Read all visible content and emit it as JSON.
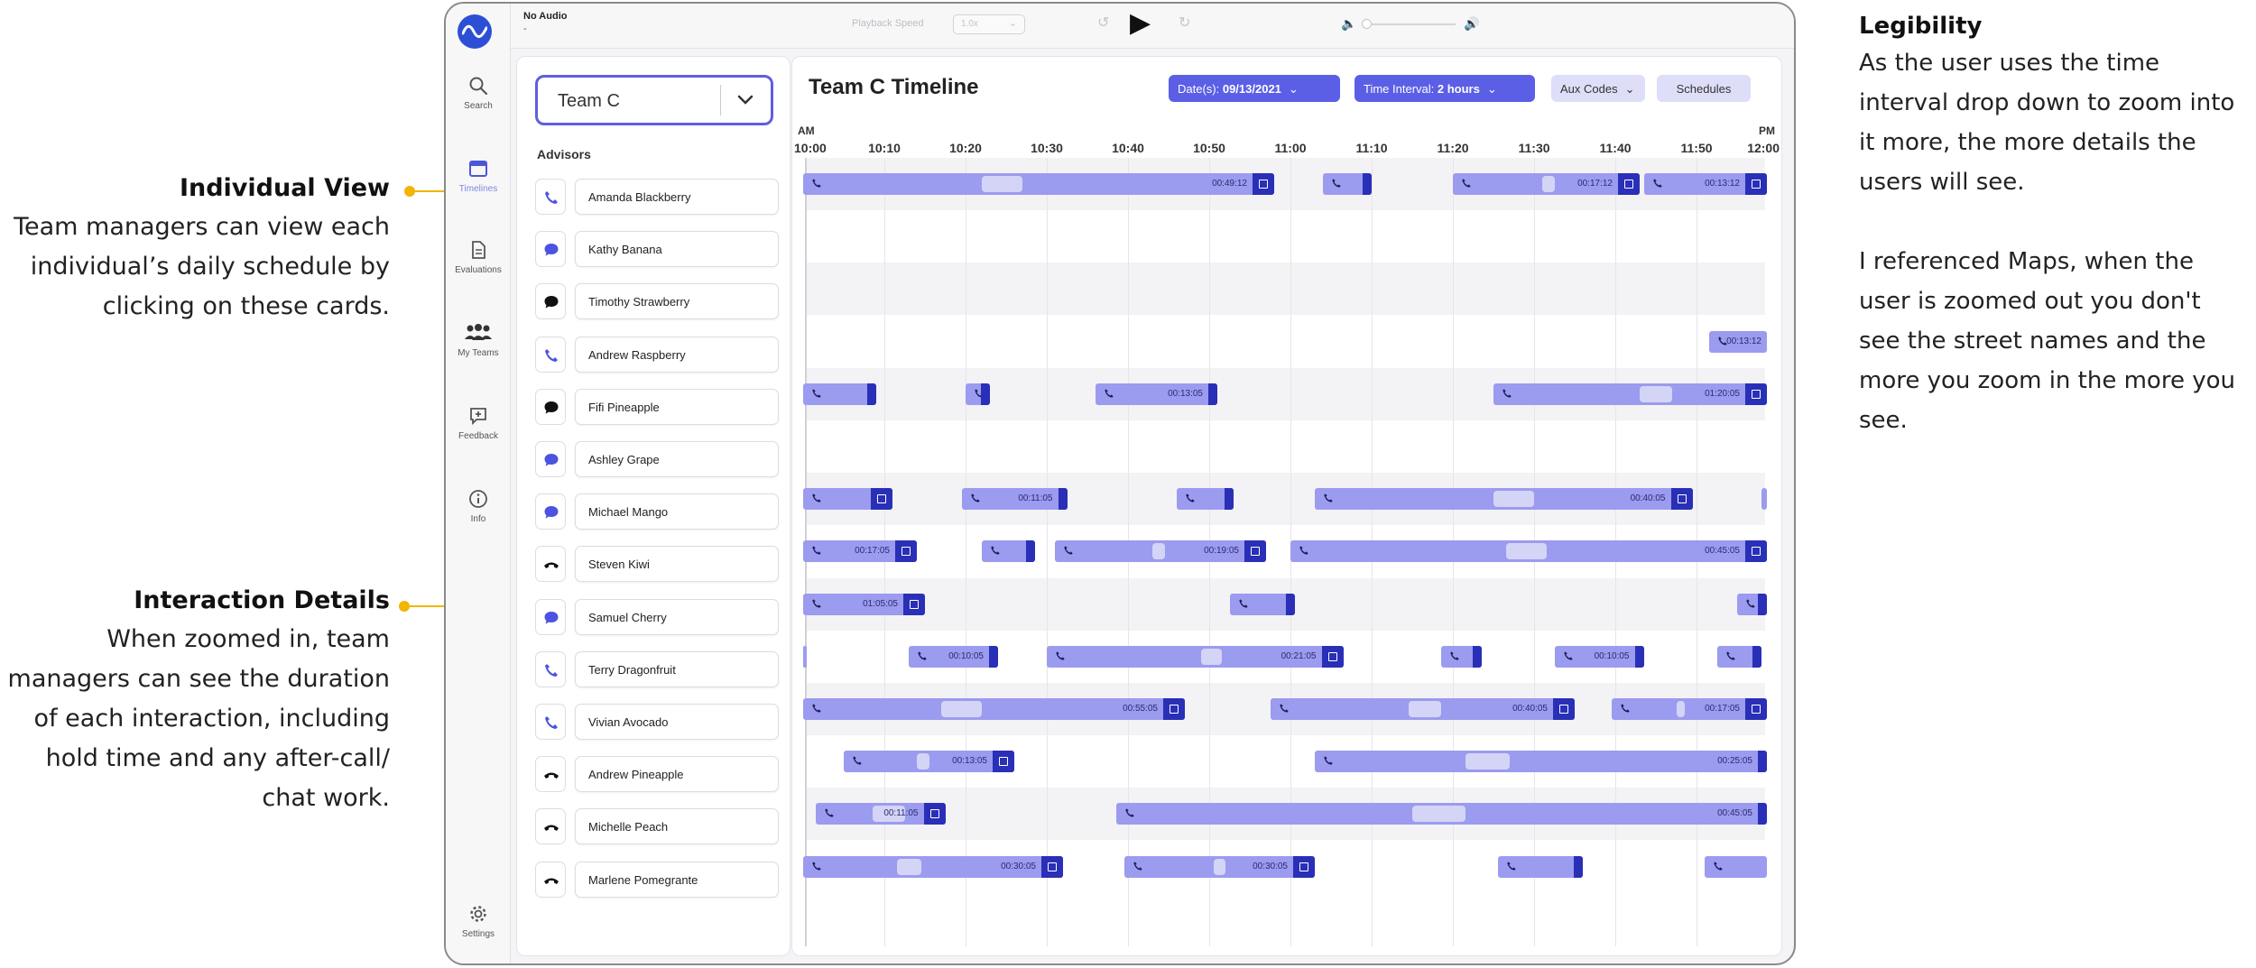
{
  "annotations": {
    "individual_view": {
      "title": "Individual View",
      "body": [
        "Team managers can view each",
        "individual’s daily schedule by",
        "clicking on these cards."
      ]
    },
    "interaction_details": {
      "title": "Interaction Details",
      "body": [
        "When zoomed in, team",
        "managers can see the duration",
        "of each interaction, including",
        "hold time and any after-call/",
        "chat work."
      ]
    },
    "legibility": {
      "title": "Legibility",
      "body1": [
        "As the user uses the time",
        "interval drop down to zoom into",
        "it more, the more details the",
        "users will see."
      ],
      "body2": [
        "I referenced Maps, when the",
        "user is zoomed out you don't",
        "see the street names and the",
        "more you zoom in the more you",
        "see."
      ]
    }
  },
  "nav": {
    "items": [
      {
        "label": "Search",
        "icon": "search-icon"
      },
      {
        "label": "Timelines",
        "icon": "calendar-icon"
      },
      {
        "label": "Evaluations",
        "icon": "document-icon"
      },
      {
        "label": "My Teams",
        "icon": "team-icon"
      },
      {
        "label": "Feedback",
        "icon": "feedback-icon"
      },
      {
        "label": "Info",
        "icon": "info-icon"
      },
      {
        "label": "Settings",
        "icon": "gear-icon"
      }
    ]
  },
  "player": {
    "title": "No Audio",
    "subtitle": "-",
    "speed_label": "Playback Speed",
    "speed_value": "1.0x"
  },
  "advisors": {
    "team_value": "Team C",
    "heading": "Advisors",
    "list": [
      {
        "name": "Amanda Blackberry",
        "channel": "phone"
      },
      {
        "name": "Kathy Banana",
        "channel": "chat"
      },
      {
        "name": "Timothy Strawberry",
        "channel": "chat-dark"
      },
      {
        "name": "Andrew Raspberry",
        "channel": "phone"
      },
      {
        "name": "Fifi Pineapple",
        "channel": "chat-dark"
      },
      {
        "name": "Ashley Grape",
        "channel": "chat"
      },
      {
        "name": "Michael Mango",
        "channel": "chat"
      },
      {
        "name": "Steven Kiwi",
        "channel": "hangup"
      },
      {
        "name": "Samuel Cherry",
        "channel": "chat"
      },
      {
        "name": "Terry Dragonfruit",
        "channel": "phone"
      },
      {
        "name": "Vivian Avocado",
        "channel": "phone"
      },
      {
        "name": "Andrew Pineapple",
        "channel": "hangup"
      },
      {
        "name": "Michelle Peach",
        "channel": "hangup"
      },
      {
        "name": "Marlene Pomegrante",
        "channel": "hangup"
      }
    ]
  },
  "timeline": {
    "title": "Team C Timeline",
    "date_label": "Date(s): ",
    "date_value": "09/13/2021",
    "interval_label": "Time Interval: ",
    "interval_value": "2 hours",
    "aux_label": "Aux Codes",
    "schedules_label": "Schedules",
    "am_label": "AM",
    "pm_label": "PM",
    "ticks": [
      "10:00",
      "10:10",
      "10:20",
      "10:30",
      "10:40",
      "10:50",
      "11:00",
      "11:10",
      "11:20",
      "11:30",
      "11:40",
      "11:50",
      "12:00"
    ],
    "range_minutes": [
      0,
      120
    ],
    "colors": {
      "bar": "#9b9bef",
      "hold": "#d4d4f6",
      "end": "#2a2fb7",
      "accent": "#5b5fe6",
      "annotation": "#f2b600"
    },
    "rows": [
      [
        {
          "s": 0,
          "e": 58,
          "d": "00:49:12",
          "h": [
            22,
            27
          ],
          "w": 1
        },
        {
          "s": 64,
          "e": 70,
          "w": 0
        },
        {
          "s": 80,
          "e": 103,
          "d": "00:17:12",
          "h": [
            91,
            92.5
          ],
          "w": 1
        },
        {
          "s": 103.5,
          "e": 119,
          "d": "00:13:12",
          "w": 1
        }
      ],
      [],
      [],
      [
        {
          "s": 111.5,
          "e": 121,
          "d": "00:13:12"
        }
      ],
      [
        {
          "s": -0.5,
          "e": 9,
          "w": 0
        },
        {
          "s": 20,
          "e": 23,
          "w": 0
        },
        {
          "s": 36,
          "e": 51,
          "d": "00:13:05",
          "w": 0
        },
        {
          "s": 85,
          "e": 121,
          "d": "01:20:05",
          "h": [
            103,
            107
          ],
          "w": 1
        }
      ],
      [],
      [
        {
          "s": -0.5,
          "e": 11,
          "w": 1
        },
        {
          "s": 19.5,
          "e": 32.5,
          "d": "00:11:05",
          "w": 0
        },
        {
          "s": 46,
          "e": 53,
          "w": 0
        },
        {
          "s": 63,
          "e": 109.5,
          "d": "00:40:05",
          "h": [
            85,
            90
          ],
          "w": 1
        },
        {
          "s": 118,
          "e": 119.5
        }
      ],
      [
        {
          "s": -0.5,
          "e": 14,
          "d": "00:17:05",
          "w": 1
        },
        {
          "s": 22,
          "e": 28.5,
          "w": 0
        },
        {
          "s": 31,
          "e": 57,
          "d": "00:19:05",
          "h": [
            43,
            44.5
          ],
          "w": 1
        },
        {
          "s": 60,
          "e": 121,
          "d": "00:45:05",
          "h": [
            86.5,
            91.5
          ],
          "w": 1
        }
      ],
      [
        {
          "s": -0.5,
          "e": 15,
          "d": "01:05:05",
          "w": 1
        },
        {
          "s": 52.5,
          "e": 60.5,
          "w": 0
        },
        {
          "s": 115,
          "e": 120.5,
          "w": 0
        }
      ],
      [
        {
          "s": -0.5,
          "e": 0
        },
        {
          "s": 13,
          "e": 24,
          "d": "00:10:05",
          "w": 0
        },
        {
          "s": 30,
          "e": 66.5,
          "d": "00:21:05",
          "h": [
            49,
            51.5
          ],
          "w": 1
        },
        {
          "s": 78.5,
          "e": 83.5,
          "w": 0
        },
        {
          "s": 92.5,
          "e": 103.5,
          "d": "00:10:05",
          "w": 0
        },
        {
          "s": 112.5,
          "e": 118,
          "w": 0
        }
      ],
      [
        {
          "s": 0,
          "e": 47,
          "d": "00:55:05",
          "h": [
            17,
            22
          ],
          "w": 1
        },
        {
          "s": 57.5,
          "e": 95,
          "d": "00:40:05",
          "h": [
            74.5,
            78.5
          ],
          "w": 1
        },
        {
          "s": 99.5,
          "e": 121,
          "d": "00:17:05",
          "h": [
            107.5,
            108.5
          ],
          "w": 1
        }
      ],
      [
        {
          "s": 5,
          "e": 26,
          "d": "00:13:05",
          "h": [
            14,
            15.5
          ],
          "w": 1
        },
        {
          "s": 63,
          "e": 119,
          "d": "00:25:05",
          "h": [
            81.5,
            87
          ],
          "w": 0
        }
      ],
      [
        {
          "s": 1.5,
          "e": 17.5,
          "d": "00:11:05",
          "h": [
            8.5,
            12.5
          ],
          "w": 1
        },
        {
          "s": 38.5,
          "e": 121,
          "d": "00:45:05",
          "h": [
            75,
            81.5
          ],
          "w": 0
        }
      ],
      [
        {
          "s": -0.5,
          "e": 32,
          "d": "00:30:05",
          "h": [
            11.5,
            14.5
          ],
          "w": 1
        },
        {
          "s": 39.5,
          "e": 63,
          "d": "00:30:05",
          "h": [
            50.5,
            52
          ],
          "w": 1
        },
        {
          "s": 85.5,
          "e": 96,
          "w": 0
        },
        {
          "s": 111,
          "e": 121
        }
      ]
    ]
  }
}
